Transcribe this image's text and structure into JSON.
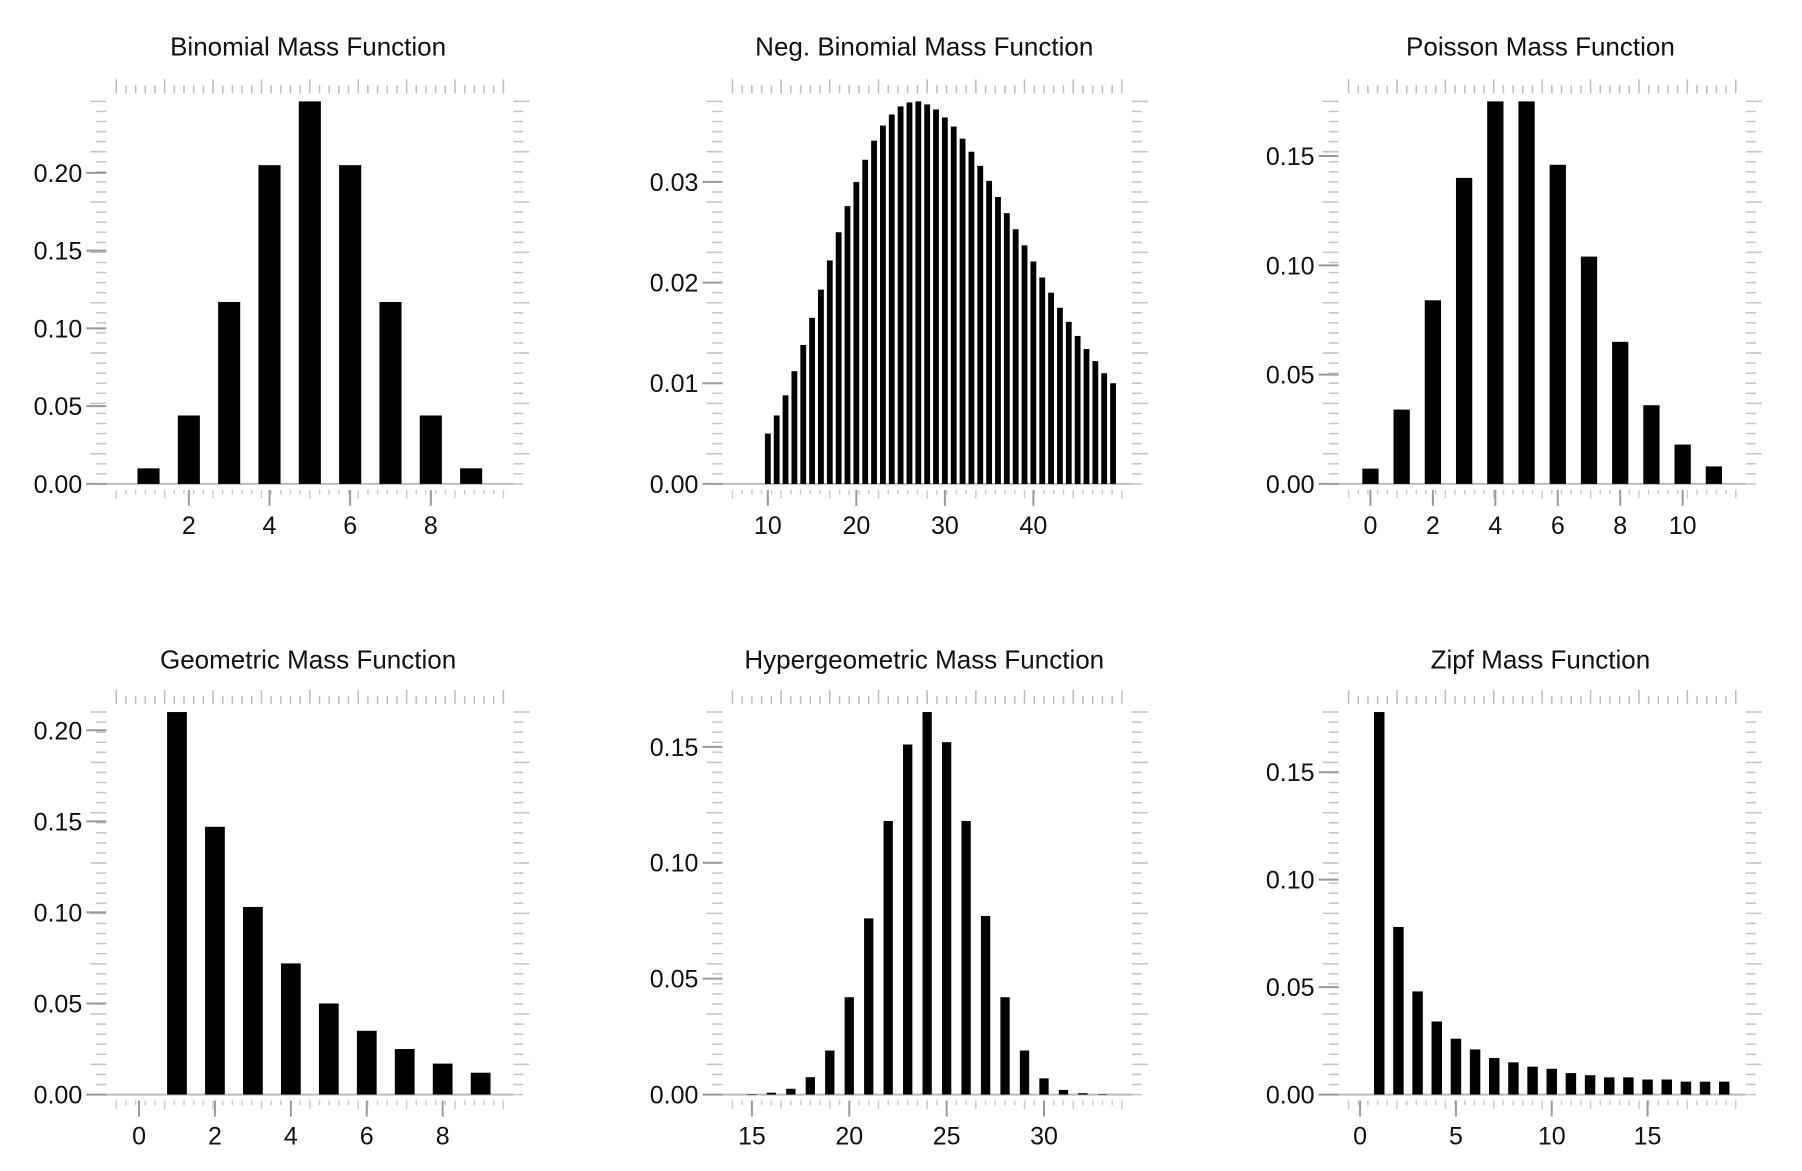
{
  "chart_data": [
    {
      "type": "bar",
      "title": "Binomial Mass Function",
      "xlabel": "",
      "ylabel": "",
      "x": [
        1,
        2,
        3,
        4,
        5,
        6,
        7,
        8,
        9
      ],
      "values": [
        0.01,
        0.044,
        0.117,
        0.205,
        0.246,
        0.205,
        0.117,
        0.044,
        0.01
      ],
      "xlim": [
        0.2,
        9.8
      ],
      "ylim": [
        0,
        0.246
      ],
      "xticks": [
        2,
        4,
        6,
        8
      ],
      "xtick_labels": [
        "2",
        "4",
        "6",
        "8"
      ],
      "yticks": [
        0.0,
        0.05,
        0.1,
        0.15,
        0.2
      ],
      "ytick_labels": [
        "0.00",
        "0.05",
        "0.10",
        "0.15",
        "0.20"
      ],
      "grid": false,
      "legend": "none"
    },
    {
      "type": "bar",
      "title": "Neg. Binomial Mass Function",
      "xlabel": "",
      "ylabel": "",
      "x": [
        10,
        11,
        12,
        13,
        14,
        15,
        16,
        17,
        18,
        19,
        20,
        21,
        22,
        23,
        24,
        25,
        26,
        27,
        28,
        29,
        30,
        31,
        32,
        33,
        34,
        35,
        36,
        37,
        38,
        39,
        40,
        41,
        42,
        43,
        44,
        45,
        46,
        47,
        48,
        49
      ],
      "values": [
        0.005,
        0.0068,
        0.0088,
        0.0112,
        0.0138,
        0.0165,
        0.0193,
        0.0222,
        0.025,
        0.0276,
        0.03,
        0.0322,
        0.0341,
        0.0356,
        0.0367,
        0.0375,
        0.0379,
        0.038,
        0.0377,
        0.0372,
        0.0364,
        0.0355,
        0.0343,
        0.033,
        0.0316,
        0.0301,
        0.0285,
        0.0269,
        0.0253,
        0.0237,
        0.0221,
        0.0205,
        0.019,
        0.0175,
        0.0161,
        0.0147,
        0.0134,
        0.0122,
        0.011,
        0.01
      ],
      "xlim": [
        6,
        50
      ],
      "ylim": [
        0,
        0.038
      ],
      "xticks": [
        10,
        20,
        30,
        40
      ],
      "xtick_labels": [
        "10",
        "20",
        "30",
        "40"
      ],
      "yticks": [
        0.0,
        0.01,
        0.02,
        0.03
      ],
      "ytick_labels": [
        "0.00",
        "0.01",
        "0.02",
        "0.03"
      ],
      "grid": false,
      "legend": "none"
    },
    {
      "type": "bar",
      "title": "Poisson Mass Function",
      "xlabel": "",
      "ylabel": "",
      "x": [
        0,
        1,
        2,
        3,
        4,
        5,
        6,
        7,
        8,
        9,
        10,
        11
      ],
      "values": [
        0.007,
        0.034,
        0.084,
        0.14,
        0.175,
        0.175,
        0.146,
        0.104,
        0.065,
        0.036,
        0.018,
        0.008
      ],
      "xlim": [
        -0.7,
        11.7
      ],
      "ylim": [
        0,
        0.175
      ],
      "xticks": [
        0,
        2,
        4,
        6,
        8,
        10
      ],
      "xtick_labels": [
        "0",
        "2",
        "4",
        "6",
        "8",
        "10"
      ],
      "yticks": [
        0.0,
        0.05,
        0.1,
        0.15
      ],
      "ytick_labels": [
        "0.00",
        "0.05",
        "0.10",
        "0.15"
      ],
      "grid": false,
      "legend": "none"
    },
    {
      "type": "bar",
      "title": "Geometric Mass Function",
      "xlabel": "",
      "ylabel": "",
      "x": [
        1,
        2,
        3,
        4,
        5,
        6,
        7,
        8,
        9
      ],
      "values": [
        0.21,
        0.147,
        0.103,
        0.072,
        0.05,
        0.035,
        0.025,
        0.017,
        0.012
      ],
      "xlim": [
        -0.6,
        9.6
      ],
      "ylim": [
        0,
        0.21
      ],
      "xticks": [
        0,
        2,
        4,
        6,
        8
      ],
      "xtick_labels": [
        "0",
        "2",
        "4",
        "6",
        "8"
      ],
      "yticks": [
        0.0,
        0.05,
        0.1,
        0.15,
        0.2
      ],
      "ytick_labels": [
        "0.00",
        "0.05",
        "0.10",
        "0.15",
        "0.20"
      ],
      "grid": false,
      "legend": "none"
    },
    {
      "type": "bar",
      "title": "Hypergeometric Mass Function",
      "xlabel": "",
      "ylabel": "",
      "x": [
        15,
        16,
        17,
        18,
        19,
        20,
        21,
        22,
        23,
        24,
        25,
        26,
        27,
        28,
        29,
        30,
        31,
        32,
        33
      ],
      "values": [
        0.0002,
        0.0008,
        0.0025,
        0.0075,
        0.019,
        0.042,
        0.076,
        0.118,
        0.151,
        0.165,
        0.152,
        0.118,
        0.077,
        0.042,
        0.019,
        0.007,
        0.002,
        0.0006,
        0.0001
      ],
      "xlim": [
        14,
        34
      ],
      "ylim": [
        0,
        0.165
      ],
      "xticks": [
        15,
        20,
        25,
        30
      ],
      "xtick_labels": [
        "15",
        "20",
        "25",
        "30"
      ],
      "yticks": [
        0.0,
        0.05,
        0.1,
        0.15
      ],
      "ytick_labels": [
        "0.00",
        "0.05",
        "0.10",
        "0.15"
      ],
      "grid": false,
      "legend": "none"
    },
    {
      "type": "bar",
      "title": "Zipf Mass Function",
      "xlabel": "",
      "ylabel": "",
      "x": [
        1,
        2,
        3,
        4,
        5,
        6,
        7,
        8,
        9,
        10,
        11,
        12,
        13,
        14,
        15,
        16,
        17,
        18,
        19
      ],
      "values": [
        0.178,
        0.078,
        0.048,
        0.034,
        0.026,
        0.021,
        0.017,
        0.015,
        0.013,
        0.012,
        0.01,
        0.009,
        0.008,
        0.008,
        0.007,
        0.007,
        0.006,
        0.006,
        0.006
      ],
      "xlim": [
        -0.6,
        19.6
      ],
      "ylim": [
        0,
        0.178
      ],
      "xticks": [
        0,
        5,
        10,
        15
      ],
      "xtick_labels": [
        "0",
        "5",
        "10",
        "15"
      ],
      "yticks": [
        0.0,
        0.05,
        0.1,
        0.15
      ],
      "ytick_labels": [
        "0.00",
        "0.05",
        "0.10",
        "0.15"
      ],
      "grid": false,
      "legend": "none"
    }
  ]
}
